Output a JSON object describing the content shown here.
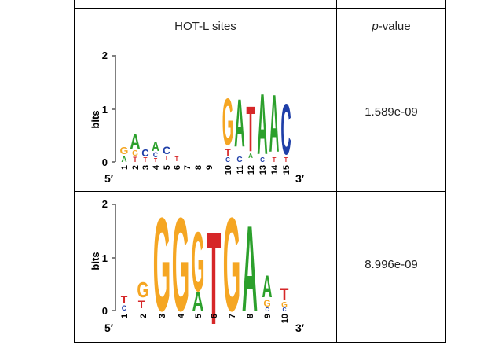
{
  "table": {
    "col_site_header": "HOT-L sites",
    "col_pvalue_header_italic": "p",
    "col_pvalue_header_rest": "-value",
    "rows": [
      {
        "pvalue": "1.589e-09",
        "logo": {
          "y_axis_label": "bits",
          "y_ticks": [
            "0",
            "1",
            "2"
          ],
          "x_ticks": [
            "1",
            "2",
            "3",
            "4",
            "5",
            "6",
            "7",
            "8",
            "9",
            "10",
            "11",
            "12",
            "13",
            "14",
            "15"
          ],
          "five_prime": "5′",
          "three_prime": "3′",
          "consensus": [
            "G",
            "A",
            "C",
            "A",
            "C",
            "",
            "",
            "",
            "",
            "G",
            "A",
            "T",
            "A",
            "A",
            "C"
          ]
        }
      },
      {
        "pvalue": "8.996e-09",
        "logo": {
          "y_axis_label": "bits",
          "y_ticks": [
            "0",
            "1",
            "2"
          ],
          "x_ticks": [
            "1",
            "2",
            "3",
            "4",
            "5",
            "6",
            "7",
            "8",
            "9",
            "10"
          ],
          "five_prime": "5′",
          "three_prime": "3′",
          "consensus": [
            "T",
            "G",
            "G",
            "G",
            "G",
            "T",
            "G",
            "A",
            "A",
            "T"
          ]
        }
      }
    ]
  },
  "colors": {
    "A": "#2ca02c",
    "C": "#1f3fa8",
    "G": "#f5a623",
    "T": "#d62728"
  }
}
